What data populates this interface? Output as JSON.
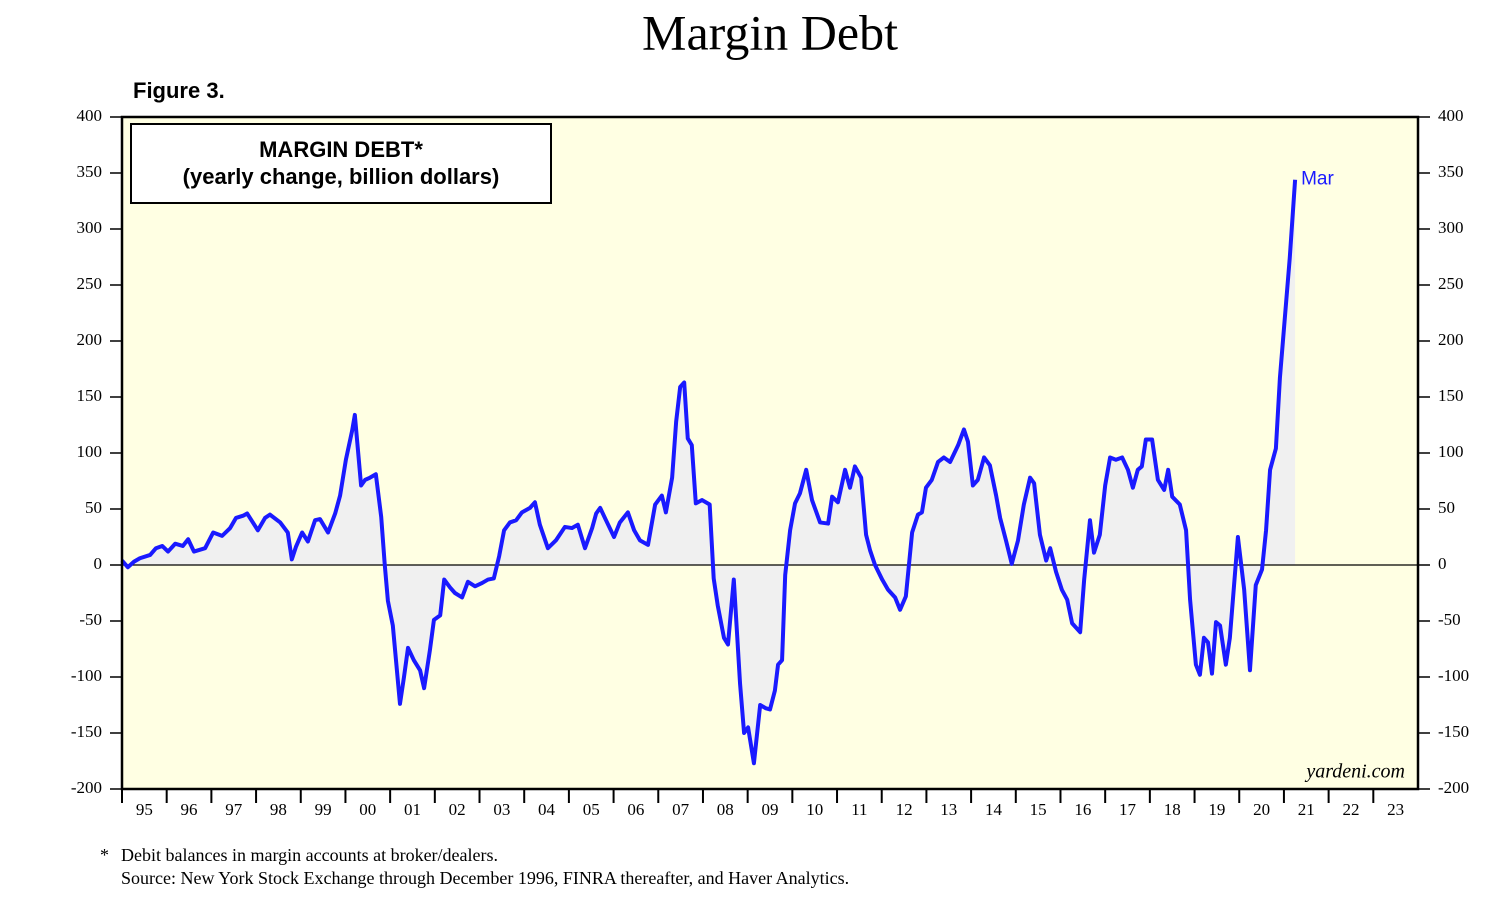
{
  "chart_data": {
    "type": "line",
    "title": "Margin Debt",
    "subtitle": "Figure 3.",
    "box_title": [
      "MARGIN DEBT*",
      "(yearly change, billion dollars)"
    ],
    "last_label": "Mar",
    "watermark": "yardeni.com",
    "footnote_mark": "*",
    "footnote": "Debit balances in margin accounts at broker/dealers.",
    "source": "Source: New York Stock Exchange through December 1996, FINRA thereafter, and Haver Analytics.",
    "xlim": [
      1995,
      2024
    ],
    "ylim": [
      -200,
      400
    ],
    "yticks": [
      -200,
      -150,
      -100,
      -50,
      0,
      50,
      100,
      150,
      200,
      250,
      300,
      350,
      400
    ],
    "xticks": [
      {
        "value": 1995,
        "label": "95"
      },
      {
        "value": 1996,
        "label": "96"
      },
      {
        "value": 1997,
        "label": "97"
      },
      {
        "value": 1998,
        "label": "98"
      },
      {
        "value": 1999,
        "label": "99"
      },
      {
        "value": 2000,
        "label": "00"
      },
      {
        "value": 2001,
        "label": "01"
      },
      {
        "value": 2002,
        "label": "02"
      },
      {
        "value": 2003,
        "label": "03"
      },
      {
        "value": 2004,
        "label": "04"
      },
      {
        "value": 2005,
        "label": "05"
      },
      {
        "value": 2006,
        "label": "06"
      },
      {
        "value": 2007,
        "label": "07"
      },
      {
        "value": 2008,
        "label": "08"
      },
      {
        "value": 2009,
        "label": "09"
      },
      {
        "value": 2010,
        "label": "10"
      },
      {
        "value": 2011,
        "label": "11"
      },
      {
        "value": 2012,
        "label": "12"
      },
      {
        "value": 2013,
        "label": "13"
      },
      {
        "value": 2014,
        "label": "14"
      },
      {
        "value": 2015,
        "label": "15"
      },
      {
        "value": 2016,
        "label": "16"
      },
      {
        "value": 2017,
        "label": "17"
      },
      {
        "value": 2018,
        "label": "18"
      },
      {
        "value": 2019,
        "label": "19"
      },
      {
        "value": 2020,
        "label": "20"
      },
      {
        "value": 2021,
        "label": "21"
      },
      {
        "value": 2022,
        "label": "22"
      },
      {
        "value": 2023,
        "label": "23"
      }
    ],
    "x": [
      1995.0,
      1995.13,
      1995.27,
      1995.4,
      1995.63,
      1995.76,
      1995.9,
      1996.03,
      1996.19,
      1996.36,
      1996.48,
      1996.61,
      1996.86,
      1997.04,
      1997.24,
      1997.42,
      1997.55,
      1997.71,
      1997.8,
      1998.04,
      1998.2,
      1998.31,
      1998.54,
      1998.71,
      1998.8,
      1998.89,
      1999.03,
      1999.16,
      1999.32,
      1999.43,
      1999.61,
      1999.77,
      1999.88,
      2000.01,
      2000.15,
      2000.21,
      2000.35,
      2000.44,
      2000.55,
      2000.68,
      2000.8,
      2000.88,
      2000.95,
      2001.06,
      2001.22,
      2001.31,
      2001.4,
      2001.53,
      2001.67,
      2001.76,
      2001.89,
      2001.98,
      2002.12,
      2002.21,
      2002.34,
      2002.45,
      2002.61,
      2002.74,
      2002.9,
      2003.06,
      2003.19,
      2003.32,
      2003.44,
      2003.55,
      2003.68,
      2003.82,
      2003.95,
      2004.13,
      2004.24,
      2004.35,
      2004.53,
      2004.71,
      2004.91,
      2005.07,
      2005.2,
      2005.36,
      2005.52,
      2005.61,
      2005.7,
      2005.83,
      2006.01,
      2006.14,
      2006.32,
      2006.46,
      2006.59,
      2006.77,
      2006.93,
      2007.08,
      2007.17,
      2007.31,
      2007.4,
      2007.49,
      2007.58,
      2007.66,
      2007.75,
      2007.84,
      2007.98,
      2008.15,
      2008.24,
      2008.33,
      2008.47,
      2008.56,
      2008.69,
      2008.83,
      2008.92,
      2009.01,
      2009.14,
      2009.28,
      2009.41,
      2009.5,
      2009.61,
      2009.68,
      2009.77,
      2009.84,
      2009.95,
      2010.06,
      2010.17,
      2010.31,
      2010.44,
      2010.62,
      2010.8,
      2010.89,
      2011.02,
      2011.18,
      2011.29,
      2011.4,
      2011.54,
      2011.65,
      2011.74,
      2011.85,
      2012.01,
      2012.14,
      2012.3,
      2012.41,
      2012.54,
      2012.68,
      2012.81,
      2012.9,
      2012.99,
      2013.12,
      2013.26,
      2013.39,
      2013.53,
      2013.71,
      2013.84,
      2013.93,
      2014.04,
      2014.15,
      2014.29,
      2014.42,
      2014.56,
      2014.65,
      2014.78,
      2014.91,
      2015.05,
      2015.18,
      2015.32,
      2015.41,
      2015.54,
      2015.68,
      2015.77,
      2015.9,
      2016.03,
      2016.15,
      2016.26,
      2016.44,
      2016.53,
      2016.66,
      2016.75,
      2016.88,
      2017.0,
      2017.11,
      2017.24,
      2017.38,
      2017.51,
      2017.62,
      2017.73,
      2017.82,
      2017.91,
      2018.05,
      2018.18,
      2018.32,
      2018.41,
      2018.5,
      2018.67,
      2018.81,
      2018.9,
      2019.03,
      2019.12,
      2019.21,
      2019.3,
      2019.39,
      2019.48,
      2019.57,
      2019.7,
      2019.79,
      2019.97,
      2020.11,
      2020.24,
      2020.37,
      2020.51,
      2020.6,
      2020.69,
      2020.82,
      2020.91,
      2021.13,
      2021.25
    ],
    "series": [
      {
        "name": "MARGIN DEBT",
        "color": "#1a1aff",
        "fill": "#f0f0f0",
        "values": [
          4,
          -2,
          3,
          6,
          9,
          15,
          17,
          12,
          19,
          17,
          23,
          12,
          15,
          29,
          26,
          33,
          42,
          44,
          46,
          31,
          42,
          45,
          38,
          29,
          5,
          16,
          29,
          21,
          40,
          41,
          29,
          46,
          62,
          94,
          120,
          134,
          71,
          76,
          78,
          81,
          43,
          0,
          -32,
          -54,
          -124,
          -100,
          -74,
          -85,
          -94,
          -110,
          -76,
          -49,
          -45,
          -13,
          -20,
          -25,
          -29,
          -15,
          -19,
          -16,
          -13,
          -12,
          8,
          31,
          38,
          40,
          47,
          51,
          56,
          36,
          15,
          22,
          34,
          33,
          36,
          15,
          33,
          46,
          51,
          40,
          25,
          38,
          47,
          31,
          22,
          18,
          54,
          62,
          47,
          78,
          128,
          159,
          163,
          113,
          107,
          55,
          58,
          54,
          -12,
          -36,
          -65,
          -71,
          -13,
          -106,
          -150,
          -145,
          -177,
          -125,
          -128,
          -129,
          -112,
          -89,
          -85,
          -9,
          31,
          55,
          64,
          85,
          58,
          38,
          37,
          61,
          56,
          85,
          69,
          88,
          78,
          27,
          13,
          0,
          -13,
          -22,
          -29,
          -40,
          -28,
          29,
          45,
          47,
          69,
          76,
          92,
          96,
          92,
          107,
          121,
          110,
          71,
          76,
          96,
          89,
          62,
          42,
          22,
          1,
          22,
          54,
          78,
          73,
          27,
          4,
          15,
          -6,
          -22,
          -31,
          -52,
          -60,
          -13,
          40,
          11,
          27,
          71,
          96,
          94,
          96,
          85,
          69,
          85,
          88,
          112,
          112,
          76,
          67,
          85,
          61,
          54,
          31,
          -31,
          -89,
          -98,
          -65,
          -69,
          -97,
          -51,
          -54,
          -89,
          -65,
          25,
          -22,
          -94,
          -18,
          -4,
          31,
          85,
          104,
          167,
          274,
          344
        ]
      }
    ],
    "plot_background": "#ffffe3"
  }
}
